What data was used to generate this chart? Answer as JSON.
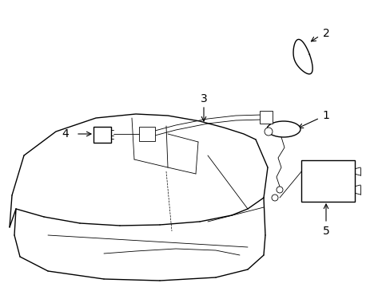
{
  "background_color": "#ffffff",
  "line_color": "#000000",
  "lw": 1.0,
  "tlw": 0.6,
  "figure_width": 4.89,
  "figure_height": 3.6,
  "dpi": 100,
  "label_fontsize": 9
}
